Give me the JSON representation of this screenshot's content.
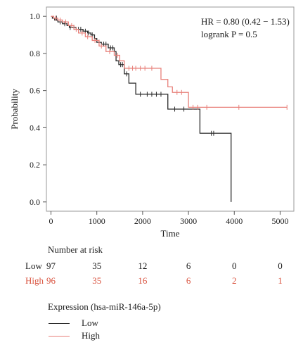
{
  "chart_data": {
    "type": "line",
    "xlabel": "Time",
    "ylabel": "Probability",
    "xlim": [
      -100,
      5300
    ],
    "ylim": [
      -0.05,
      1.05
    ],
    "x_ticks": [
      0,
      1000,
      2000,
      3000,
      4000,
      5000
    ],
    "y_ticks": [
      0.0,
      0.2,
      0.4,
      0.6,
      0.8,
      1.0
    ],
    "x_tick_labels": [
      "0",
      "1000",
      "2000",
      "3000",
      "4000",
      "5000"
    ],
    "y_tick_labels": [
      "0.0",
      "0.2",
      "0.4",
      "0.6",
      "0.8",
      "1.0"
    ],
    "annotation": {
      "hr": "HR = 0.80 (0.42 − 1.53)",
      "logrank": "logrank P = 0.5"
    },
    "series": [
      {
        "name": "Low",
        "color": "#2a2a2a",
        "steps": [
          [
            0,
            1.0
          ],
          [
            30,
            0.99
          ],
          [
            80,
            0.98
          ],
          [
            150,
            0.97
          ],
          [
            250,
            0.96
          ],
          [
            350,
            0.95
          ],
          [
            400,
            0.94
          ],
          [
            550,
            0.93
          ],
          [
            700,
            0.92
          ],
          [
            800,
            0.91
          ],
          [
            870,
            0.9
          ],
          [
            950,
            0.88
          ],
          [
            1000,
            0.86
          ],
          [
            1100,
            0.85
          ],
          [
            1250,
            0.83
          ],
          [
            1380,
            0.81
          ],
          [
            1420,
            0.76
          ],
          [
            1480,
            0.74
          ],
          [
            1600,
            0.69
          ],
          [
            1700,
            0.64
          ],
          [
            1850,
            0.58
          ],
          [
            2550,
            0.5
          ],
          [
            3250,
            0.37
          ],
          [
            3930,
            0.0
          ]
        ],
        "end_x": 3930,
        "censors": [
          [
            120,
            0.99
          ],
          [
            200,
            0.97
          ],
          [
            300,
            0.96
          ],
          [
            420,
            0.94
          ],
          [
            500,
            0.94
          ],
          [
            600,
            0.93
          ],
          [
            650,
            0.93
          ],
          [
            750,
            0.92
          ],
          [
            820,
            0.91
          ],
          [
            900,
            0.9
          ],
          [
            1050,
            0.86
          ],
          [
            1150,
            0.85
          ],
          [
            1200,
            0.85
          ],
          [
            1300,
            0.83
          ],
          [
            1350,
            0.83
          ],
          [
            1520,
            0.74
          ],
          [
            1560,
            0.74
          ],
          [
            1650,
            0.69
          ],
          [
            1950,
            0.58
          ],
          [
            2100,
            0.58
          ],
          [
            2200,
            0.58
          ],
          [
            2300,
            0.58
          ],
          [
            2400,
            0.58
          ],
          [
            2700,
            0.5
          ],
          [
            2900,
            0.5
          ],
          [
            3500,
            0.37
          ],
          [
            3550,
            0.37
          ]
        ]
      },
      {
        "name": "High",
        "color": "#e8807a",
        "steps": [
          [
            0,
            1.0
          ],
          [
            60,
            0.99
          ],
          [
            150,
            0.98
          ],
          [
            250,
            0.97
          ],
          [
            380,
            0.95
          ],
          [
            500,
            0.93
          ],
          [
            600,
            0.91
          ],
          [
            750,
            0.89
          ],
          [
            900,
            0.87
          ],
          [
            1050,
            0.84
          ],
          [
            1200,
            0.81
          ],
          [
            1380,
            0.79
          ],
          [
            1500,
            0.76
          ],
          [
            1600,
            0.72
          ],
          [
            2400,
            0.66
          ],
          [
            2550,
            0.62
          ],
          [
            2650,
            0.59
          ],
          [
            3000,
            0.51
          ]
        ],
        "end_x": 5150,
        "censors": [
          [
            100,
            0.99
          ],
          [
            200,
            0.98
          ],
          [
            320,
            0.97
          ],
          [
            450,
            0.95
          ],
          [
            550,
            0.93
          ],
          [
            680,
            0.91
          ],
          [
            800,
            0.89
          ],
          [
            960,
            0.87
          ],
          [
            1100,
            0.84
          ],
          [
            1280,
            0.81
          ],
          [
            1450,
            0.79
          ],
          [
            1700,
            0.72
          ],
          [
            1780,
            0.72
          ],
          [
            1850,
            0.72
          ],
          [
            1950,
            0.72
          ],
          [
            2050,
            0.72
          ],
          [
            2200,
            0.72
          ],
          [
            2750,
            0.59
          ],
          [
            2850,
            0.59
          ],
          [
            3100,
            0.51
          ],
          [
            3200,
            0.51
          ],
          [
            3400,
            0.51
          ],
          [
            4100,
            0.51
          ],
          [
            5150,
            0.51
          ]
        ]
      }
    ]
  },
  "risk_table": {
    "title": "Number at risk",
    "time_points": [
      0,
      1000,
      2000,
      3000,
      4000,
      5000
    ],
    "rows": [
      {
        "label": "Low",
        "color": "#1a1a1a",
        "values": [
          "97",
          "35",
          "12",
          "6",
          "0",
          "0"
        ]
      },
      {
        "label": "High",
        "color": "#d9533f",
        "values": [
          "96",
          "35",
          "16",
          "6",
          "2",
          "1"
        ]
      }
    ]
  },
  "legend": {
    "title": "Expression (hsa-miR-146a-5p)",
    "items": [
      {
        "label": "Low",
        "color": "#2a2a2a"
      },
      {
        "label": "High",
        "color": "#e8807a"
      }
    ]
  }
}
